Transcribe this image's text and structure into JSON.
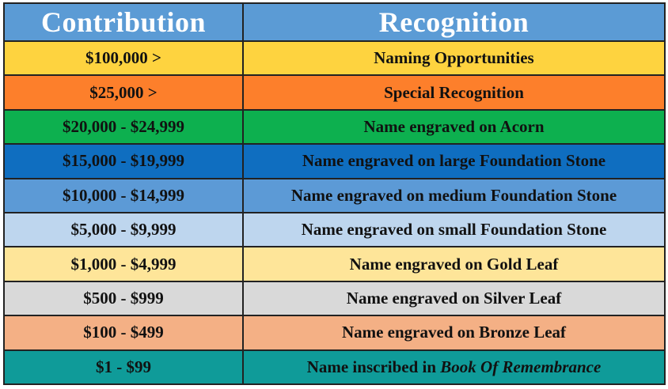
{
  "header": {
    "contribution": "Contribution",
    "recognition": "Recognition"
  },
  "rows": [
    {
      "amount": "$100,000 >",
      "recognition": "Naming Opportunities",
      "color": "#fed33f"
    },
    {
      "amount": "$25,000 >",
      "recognition": "Special Recognition",
      "color": "#fd7f2b"
    },
    {
      "amount": "$20,000 - $24,999",
      "recognition": "Name engraved on Acorn",
      "color": "#0db04f"
    },
    {
      "amount": "$15,000 - $19,999",
      "recognition": "Name engraved on large Foundation Stone",
      "color": "#0f6ec0"
    },
    {
      "amount": "$10,000 - $14,999",
      "recognition": "Name engraved on medium Foundation Stone",
      "color": "#5c9ad6"
    },
    {
      "amount": "$5,000 - $9,999",
      "recognition": "Name engraved on small Foundation Stone",
      "color": "#bed6ee"
    },
    {
      "amount": "$1,000 - $4,999",
      "recognition": "Name engraved on Gold Leaf",
      "color": "#fee599"
    },
    {
      "amount": "$500 - $999",
      "recognition": "Name engraved on Silver Leaf",
      "color": "#d9d9d9"
    },
    {
      "amount": "$100 - $499",
      "recognition": "Name engraved on Bronze Leaf",
      "color": "#f4b085"
    },
    {
      "amount": "$1 - $99",
      "recognition_prefix": "Name inscribed in",
      "recognition_italic": "Book Of Remembrance",
      "color": "#0f9b99"
    }
  ]
}
